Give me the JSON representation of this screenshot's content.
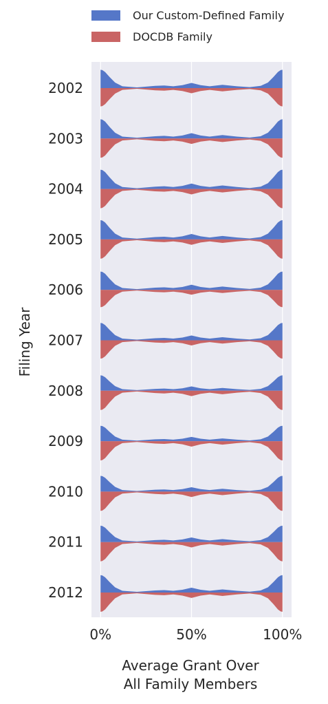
{
  "chart_data": {
    "type": "split-violin",
    "xlabel": [
      "Average Grant Over",
      "All Family Members"
    ],
    "ylabel": "Filing Year",
    "x_ticks": [
      "0%",
      "50%",
      "100%"
    ],
    "x_tick_values": [
      0,
      50,
      100
    ],
    "xlim": [
      -5,
      105
    ],
    "grid": true,
    "legend_position": "top",
    "categories": [
      "2002",
      "2003",
      "2004",
      "2005",
      "2006",
      "2007",
      "2008",
      "2009",
      "2010",
      "2011",
      "2012"
    ],
    "series": [
      {
        "name": "Our Custom-Defined Family",
        "side": "upper",
        "color": "#5577c8",
        "density_scale": [
          0.95,
          1.0,
          1.0,
          1.0,
          0.95,
          0.9,
          0.8,
          0.8,
          0.82,
          0.85,
          0.9
        ]
      },
      {
        "name": "DOCDB Family",
        "side": "lower",
        "color": "#c96464",
        "density_scale": [
          0.95,
          1.0,
          1.0,
          1.0,
          0.9,
          0.95,
          1.0,
          1.0,
          1.0,
          1.0,
          1.0
        ]
      }
    ],
    "density_profile": {
      "x": [
        0,
        1,
        2.5,
        5,
        8,
        12,
        20,
        30,
        35,
        40,
        45,
        50,
        55,
        60,
        67,
        75,
        82,
        88,
        92,
        95,
        97.5,
        99,
        100
      ],
      "upper": [
        1.0,
        0.98,
        0.88,
        0.6,
        0.3,
        0.1,
        0.04,
        0.12,
        0.14,
        0.1,
        0.16,
        0.28,
        0.16,
        0.1,
        0.18,
        0.1,
        0.05,
        0.12,
        0.3,
        0.6,
        0.88,
        0.98,
        1.0
      ],
      "lower": [
        1.0,
        0.98,
        0.88,
        0.6,
        0.3,
        0.1,
        0.04,
        0.12,
        0.14,
        0.1,
        0.16,
        0.28,
        0.16,
        0.1,
        0.18,
        0.1,
        0.05,
        0.12,
        0.3,
        0.6,
        0.88,
        0.98,
        1.0
      ]
    }
  }
}
